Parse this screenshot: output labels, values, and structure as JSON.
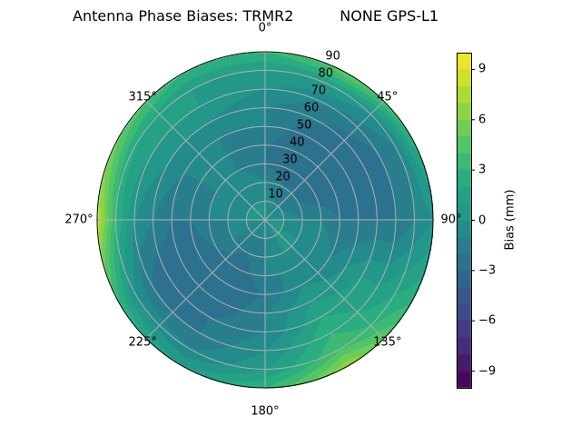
{
  "chart_data": {
    "type": "heatmap",
    "subtype": "polar-contourf",
    "title": "Antenna Phase Biases: TRMR2          NONE GPS-L1",
    "colormap": "viridis",
    "colorbar": {
      "label": "Bias (mm)",
      "range": [
        -10,
        10
      ],
      "levels_step": 1,
      "ticks": [
        9,
        6,
        3,
        0,
        -3,
        -6,
        -9
      ],
      "tick_labels": [
        "9",
        "6",
        "3",
        "0",
        "−3",
        "−6",
        "−9"
      ]
    },
    "angular_axis": {
      "zero_location": "top",
      "direction": "clockwise",
      "ticks": [
        0,
        45,
        90,
        135,
        180,
        225,
        270,
        315
      ],
      "tick_labels": [
        "0°",
        "45°",
        "90°",
        "135°",
        "180°",
        "225°",
        "270°",
        "315°"
      ]
    },
    "radial_axis": {
      "range": [
        0,
        90
      ],
      "ticks": [
        10,
        20,
        30,
        40,
        50,
        60,
        70,
        80,
        90
      ],
      "tick_labels": [
        "10",
        "20",
        "30",
        "40",
        "50",
        "60",
        "70",
        "80",
        "90"
      ]
    },
    "grid": true,
    "azimuths": [
      0,
      30,
      60,
      90,
      120,
      150,
      180,
      210,
      240,
      270,
      300,
      330
    ],
    "radii": [
      0,
      10,
      20,
      30,
      40,
      50,
      60,
      70,
      80,
      90
    ],
    "values": [
      [
        0,
        0,
        -1,
        -2,
        -2,
        -1,
        -1,
        0,
        1,
        3
      ],
      [
        0,
        -1,
        -2,
        -3,
        -3,
        -3,
        -2,
        -1,
        1,
        5
      ],
      [
        0,
        -1,
        -2,
        -3,
        -3,
        -3,
        -3,
        -2,
        -1,
        3
      ],
      [
        0,
        0,
        -1,
        -1,
        -2,
        -2,
        -2,
        -2,
        -1,
        0
      ],
      [
        0,
        0,
        0,
        0,
        -1,
        0,
        1,
        1,
        2,
        3
      ],
      [
        0,
        0,
        0,
        -1,
        0,
        1,
        2,
        3,
        4,
        7
      ],
      [
        0,
        -1,
        -1,
        -1,
        -2,
        -1,
        -1,
        0,
        1,
        3
      ],
      [
        0,
        -1,
        -2,
        -3,
        -3,
        -3,
        -2,
        -2,
        -1,
        1
      ],
      [
        0,
        -1,
        -1,
        -2,
        -3,
        -3,
        -3,
        -2,
        0,
        3
      ],
      [
        0,
        0,
        -1,
        -1,
        -2,
        -2,
        -1,
        0,
        3,
        8
      ],
      [
        0,
        0,
        -1,
        -1,
        -1,
        -1,
        0,
        1,
        2,
        5
      ],
      [
        0,
        0,
        0,
        -1,
        -1,
        -1,
        0,
        1,
        1,
        3
      ]
    ]
  }
}
